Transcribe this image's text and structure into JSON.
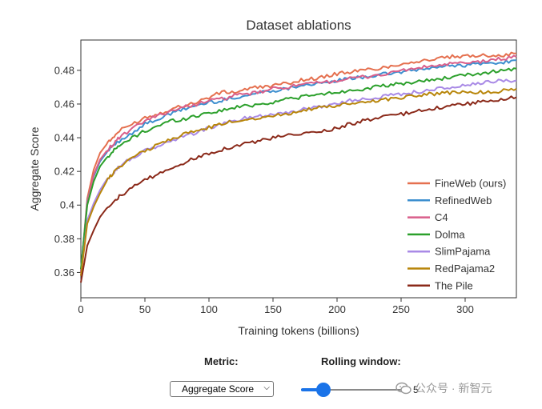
{
  "chart_data": {
    "type": "line",
    "title": "Dataset ablations",
    "xlabel": "Training tokens (billions)",
    "ylabel": "Aggregate Score",
    "xlim": [
      0,
      340
    ],
    "ylim": [
      0.345,
      0.498
    ],
    "xticks": [
      0,
      50,
      100,
      150,
      200,
      250,
      300
    ],
    "yticks": [
      0.36,
      0.38,
      0.4,
      0.42,
      0.44,
      0.46,
      0.48
    ],
    "ytick_labels": [
      "0.36",
      "0.38",
      "0.4",
      "0.42",
      "0.44",
      "0.46",
      "0.48"
    ],
    "legend_position": "bottom-right",
    "x": [
      0,
      5,
      10,
      15,
      20,
      25,
      30,
      40,
      50,
      60,
      70,
      80,
      90,
      100,
      110,
      120,
      130,
      140,
      150,
      160,
      170,
      180,
      190,
      200,
      210,
      220,
      230,
      240,
      250,
      260,
      270,
      280,
      290,
      300,
      310,
      320,
      330,
      340
    ],
    "series": [
      {
        "name": "FineWeb (ours)",
        "color": "#e5704f",
        "values": [
          0.36,
          0.404,
          0.421,
          0.431,
          0.436,
          0.44,
          0.444,
          0.448,
          0.452,
          0.454,
          0.457,
          0.459,
          0.461,
          0.464,
          0.467,
          0.467,
          0.469,
          0.47,
          0.471,
          0.472,
          0.474,
          0.475,
          0.476,
          0.478,
          0.479,
          0.48,
          0.481,
          0.482,
          0.484,
          0.485,
          0.486,
          0.487,
          0.488,
          0.488,
          0.489,
          0.489,
          0.489,
          0.49
        ]
      },
      {
        "name": "RefinedWeb",
        "color": "#3d8fcf",
        "values": [
          0.361,
          0.402,
          0.417,
          0.426,
          0.431,
          0.435,
          0.438,
          0.443,
          0.448,
          0.451,
          0.454,
          0.457,
          0.459,
          0.461,
          0.462,
          0.464,
          0.465,
          0.467,
          0.468,
          0.469,
          0.471,
          0.472,
          0.472,
          0.474,
          0.475,
          0.476,
          0.477,
          0.478,
          0.479,
          0.48,
          0.481,
          0.482,
          0.483,
          0.483,
          0.484,
          0.484,
          0.485,
          0.486
        ]
      },
      {
        "name": "C4",
        "color": "#d95f8b",
        "values": [
          0.36,
          0.401,
          0.418,
          0.427,
          0.432,
          0.436,
          0.44,
          0.445,
          0.45,
          0.453,
          0.456,
          0.458,
          0.46,
          0.462,
          0.463,
          0.465,
          0.466,
          0.467,
          0.469,
          0.47,
          0.471,
          0.472,
          0.473,
          0.474,
          0.475,
          0.476,
          0.477,
          0.478,
          0.48,
          0.481,
          0.482,
          0.483,
          0.484,
          0.484,
          0.485,
          0.486,
          0.487,
          0.488
        ]
      },
      {
        "name": "Dolma",
        "color": "#2ca02c",
        "values": [
          0.362,
          0.4,
          0.414,
          0.423,
          0.428,
          0.432,
          0.435,
          0.44,
          0.444,
          0.447,
          0.45,
          0.451,
          0.453,
          0.455,
          0.456,
          0.458,
          0.459,
          0.46,
          0.461,
          0.463,
          0.464,
          0.465,
          0.466,
          0.467,
          0.468,
          0.469,
          0.47,
          0.471,
          0.472,
          0.473,
          0.474,
          0.475,
          0.476,
          0.477,
          0.478,
          0.479,
          0.48,
          0.481
        ]
      },
      {
        "name": "SlimPajama",
        "color": "#a98ae6",
        "values": [
          0.358,
          0.391,
          0.401,
          0.409,
          0.415,
          0.419,
          0.423,
          0.428,
          0.432,
          0.435,
          0.438,
          0.441,
          0.443,
          0.446,
          0.448,
          0.45,
          0.452,
          0.453,
          0.454,
          0.455,
          0.456,
          0.458,
          0.459,
          0.46,
          0.462,
          0.463,
          0.464,
          0.465,
          0.466,
          0.467,
          0.468,
          0.469,
          0.47,
          0.471,
          0.472,
          0.473,
          0.474,
          0.474
        ]
      },
      {
        "name": "RedPajama2",
        "color": "#b8860b",
        "values": [
          0.358,
          0.389,
          0.399,
          0.407,
          0.414,
          0.419,
          0.423,
          0.428,
          0.432,
          0.436,
          0.439,
          0.442,
          0.444,
          0.446,
          0.448,
          0.45,
          0.451,
          0.452,
          0.453,
          0.454,
          0.456,
          0.457,
          0.458,
          0.459,
          0.46,
          0.461,
          0.462,
          0.463,
          0.464,
          0.465,
          0.466,
          0.466,
          0.467,
          0.467,
          0.467,
          0.467,
          0.468,
          0.469
        ]
      },
      {
        "name": "The Pile",
        "color": "#8b2a1a",
        "values": [
          0.354,
          0.376,
          0.385,
          0.393,
          0.398,
          0.402,
          0.405,
          0.41,
          0.415,
          0.418,
          0.422,
          0.425,
          0.428,
          0.431,
          0.433,
          0.435,
          0.437,
          0.438,
          0.44,
          0.441,
          0.442,
          0.443,
          0.444,
          0.446,
          0.448,
          0.45,
          0.451,
          0.453,
          0.454,
          0.455,
          0.457,
          0.458,
          0.459,
          0.46,
          0.461,
          0.462,
          0.463,
          0.464
        ]
      }
    ]
  },
  "controls": {
    "metric_label": "Metric:",
    "metric_value": "Aggregate Score",
    "rolling_label": "Rolling window:",
    "rolling_value": "5"
  },
  "watermark": {
    "text": "公众号 · 新智元"
  }
}
